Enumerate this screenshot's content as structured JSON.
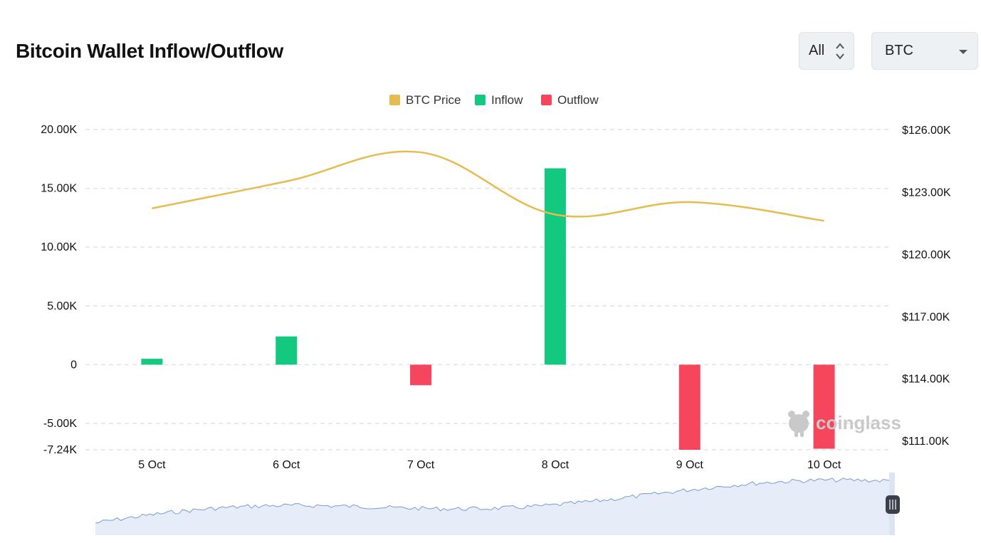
{
  "header": {
    "title": "Bitcoin Wallet Inflow/Outflow",
    "range_select": "All",
    "asset_select": "BTC"
  },
  "watermark": "coinglass",
  "colors": {
    "price": "#e6bb4f",
    "inflow": "#13c87f",
    "outflow": "#f5465e",
    "navigator_line": "#7a9bd0",
    "navigator_fill": "#e6edf9"
  },
  "chart_data": {
    "type": "bar",
    "categories": [
      "5 Oct",
      "6 Oct",
      "7 Oct",
      "8 Oct",
      "9 Oct",
      "10 Oct"
    ],
    "series": [
      {
        "name": "Inflow",
        "type": "bar",
        "axis": "left",
        "values": [
          500,
          2400,
          null,
          16700,
          null,
          null
        ]
      },
      {
        "name": "Outflow",
        "type": "bar",
        "axis": "left",
        "values": [
          null,
          null,
          -1750,
          null,
          -7240,
          -7150
        ]
      },
      {
        "name": "BTC Price",
        "type": "line",
        "axis": "right",
        "values": [
          122200,
          123500,
          124900,
          121900,
          122500,
          121600
        ]
      }
    ],
    "legend": [
      "BTC Price",
      "Inflow",
      "Outflow"
    ],
    "legend_position": "top-center",
    "y_left": {
      "ticks": [
        "20.00K",
        "15.00K",
        "10.00K",
        "5.00K",
        "0",
        "-5.00K",
        "-7.24K"
      ],
      "range": [
        -7240,
        20000
      ]
    },
    "y_right": {
      "ticks": [
        "$126.00K",
        "$123.00K",
        "$120.00K",
        "$117.00K",
        "$114.00K",
        "$111.00K"
      ],
      "range": [
        110560,
        126000
      ]
    },
    "grid": true
  }
}
